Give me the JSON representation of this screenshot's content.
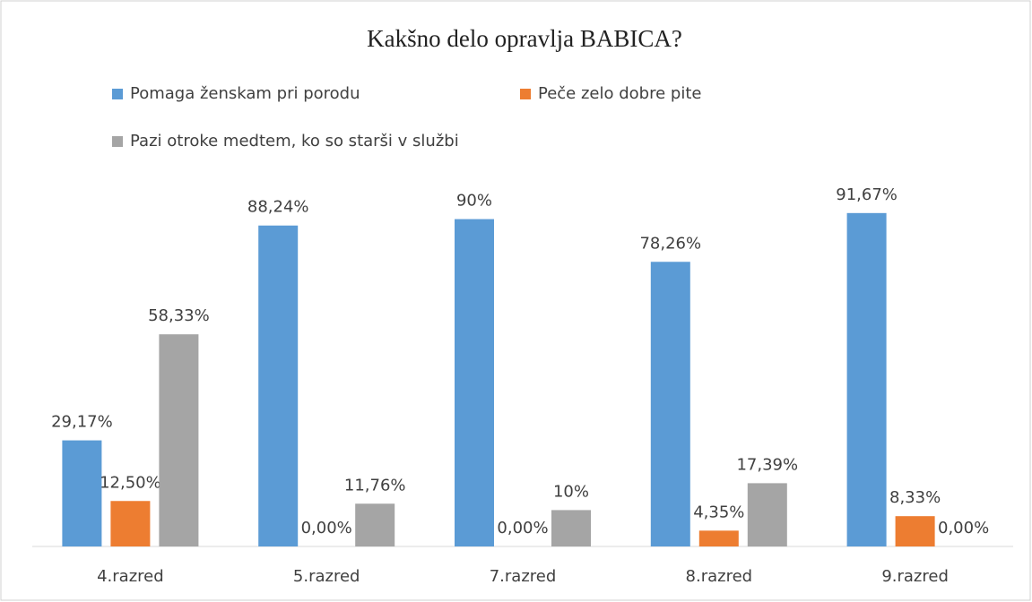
{
  "chart_data": {
    "type": "bar",
    "title": "Kakšno delo opravlja BABICA?",
    "categories": [
      "4.razred",
      "5.razred",
      "7.razred",
      "8.razred",
      "9.razred"
    ],
    "series": [
      {
        "name": "Pomaga ženskam pri porodu",
        "color": "#5b9bd5",
        "values": [
          29.17,
          88.24,
          90,
          78.26,
          91.67
        ],
        "value_labels": [
          "29,17%",
          "88,24%",
          "90%",
          "78,26%",
          "91,67%"
        ]
      },
      {
        "name": "Peče zelo dobre pite",
        "color": "#ed7d31",
        "values": [
          12.5,
          0,
          0,
          4.35,
          8.33
        ],
        "value_labels": [
          "12,50%",
          "0,00%",
          "0,00%",
          "4,35%",
          "8,33%"
        ]
      },
      {
        "name": "Pazi otroke medtem, ko so starši v službi",
        "color": "#a5a5a5",
        "values": [
          58.33,
          11.76,
          10,
          17.39,
          0
        ],
        "value_labels": [
          "58,33%",
          "11,76%",
          "10%",
          "17,39%",
          "0,00%"
        ]
      }
    ],
    "ylim": [
      0,
      100
    ]
  }
}
